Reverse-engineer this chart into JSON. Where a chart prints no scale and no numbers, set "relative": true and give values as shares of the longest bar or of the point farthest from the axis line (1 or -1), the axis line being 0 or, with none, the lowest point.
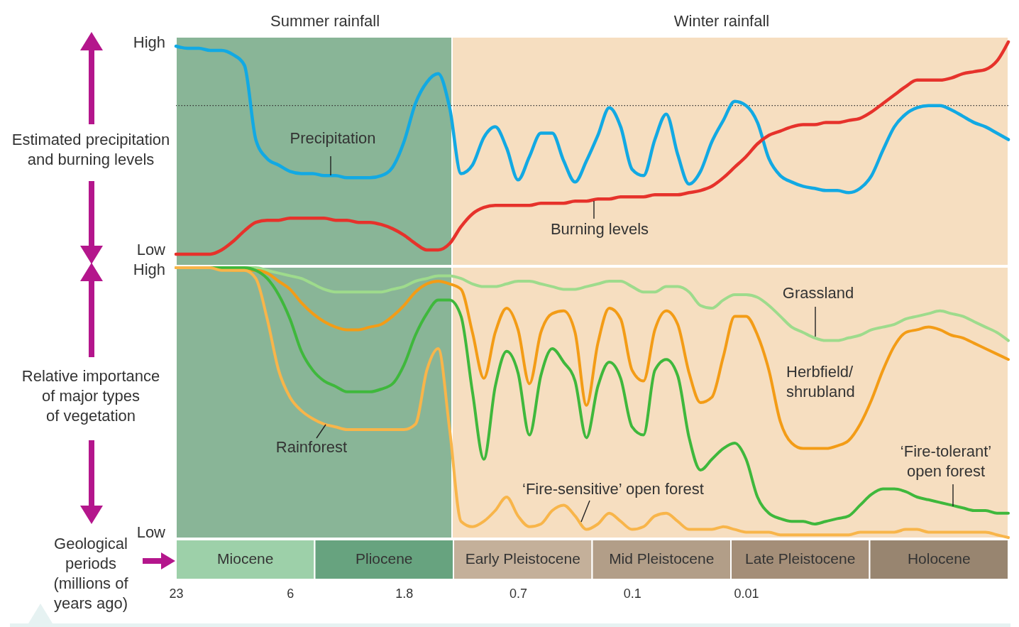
{
  "chart_data": [
    {
      "type": "line",
      "ylabel": "Estimated precipitation\nand burning levels",
      "relative": true,
      "tick_labels": false,
      "categories": [
        "23",
        null,
        null,
        null,
        null,
        null,
        null,
        null,
        null,
        null,
        "6",
        null,
        null,
        null,
        null,
        null,
        null,
        null,
        null,
        null,
        "1.8",
        null,
        null,
        null,
        null,
        null,
        null,
        null,
        null,
        null,
        "0.7",
        null,
        null,
        null,
        null,
        null,
        null,
        null,
        null,
        null,
        "0.1",
        null,
        null,
        null,
        null,
        null,
        null,
        null,
        null,
        null,
        "0.01",
        null,
        null,
        null,
        null,
        null,
        null,
        null,
        null,
        null,
        null,
        null,
        null,
        null,
        null,
        null,
        null,
        null,
        null,
        null,
        null,
        null,
        null,
        null
      ],
      "ref_lines": [
        {
          "axis": "y",
          "value": 0.7,
          "color": "#333333",
          "line_style": "dotted"
        }
      ],
      "annotations": [
        "Summer rainfall",
        "Winter rainfall",
        "High",
        "Low"
      ],
      "series": [
        {
          "name": "Precipitation",
          "color": "#12a9e3",
          "values": [
            0.98,
            0.97,
            0.97,
            0.96,
            0.96,
            0.94,
            0.89,
            0.54,
            0.45,
            0.42,
            0.39,
            0.38,
            0.38,
            0.37,
            0.37,
            0.36,
            0.36,
            0.36,
            0.37,
            0.41,
            0.53,
            0.71,
            0.81,
            0.85,
            0.69,
            0.38,
            0.42,
            0.55,
            0.6,
            0.5,
            0.35,
            0.46,
            0.57,
            0.57,
            0.44,
            0.34,
            0.44,
            0.56,
            0.69,
            0.6,
            0.4,
            0.37,
            0.54,
            0.66,
            0.47,
            0.33,
            0.39,
            0.53,
            0.63,
            0.72,
            0.7,
            0.62,
            0.45,
            0.37,
            0.34,
            0.32,
            0.31,
            0.3,
            0.3,
            0.29,
            0.31,
            0.37,
            0.49,
            0.6,
            0.66,
            0.69,
            0.7,
            0.7,
            0.68,
            0.65,
            0.62,
            0.6,
            0.57,
            0.54
          ]
        },
        {
          "name": "Burning levels",
          "color": "#e6322b",
          "values": [
            0,
            0,
            0,
            0,
            0.02,
            0.06,
            0.11,
            0.15,
            0.16,
            0.16,
            0.17,
            0.17,
            0.17,
            0.17,
            0.16,
            0.16,
            0.15,
            0.15,
            0.14,
            0.12,
            0.09,
            0.05,
            0.02,
            0.02,
            0.05,
            0.13,
            0.19,
            0.22,
            0.23,
            0.23,
            0.23,
            0.23,
            0.24,
            0.24,
            0.24,
            0.25,
            0.25,
            0.26,
            0.26,
            0.27,
            0.27,
            0.27,
            0.28,
            0.28,
            0.28,
            0.29,
            0.3,
            0.32,
            0.36,
            0.41,
            0.46,
            0.52,
            0.56,
            0.58,
            0.6,
            0.61,
            0.61,
            0.62,
            0.62,
            0.63,
            0.64,
            0.67,
            0.71,
            0.75,
            0.79,
            0.82,
            0.82,
            0.82,
            0.83,
            0.85,
            0.86,
            0.87,
            0.91,
            1.0
          ]
        }
      ]
    },
    {
      "type": "line",
      "ylabel": "Relative importance\nof major types\nof vegetation",
      "relative": true,
      "tick_labels": "x",
      "categories": [
        "23",
        null,
        null,
        null,
        null,
        null,
        null,
        null,
        null,
        null,
        "6",
        null,
        null,
        null,
        null,
        null,
        null,
        null,
        null,
        null,
        "1.8",
        null,
        null,
        null,
        null,
        null,
        null,
        null,
        null,
        null,
        "0.7",
        null,
        null,
        null,
        null,
        null,
        null,
        null,
        null,
        null,
        "0.1",
        null,
        null,
        null,
        null,
        null,
        null,
        null,
        null,
        null,
        "0.01",
        null,
        null,
        null,
        null,
        null,
        null,
        null,
        null,
        null,
        null,
        null,
        null,
        null,
        null,
        null,
        null,
        null,
        null,
        null,
        null,
        null,
        null,
        null
      ],
      "annotations": [
        "High",
        "Low",
        "‘Fire-sensitive’ open forest"
      ],
      "series": [
        {
          "name": "Grassland",
          "color": "#9edb8c",
          "values": [
            1,
            1,
            1,
            1,
            1,
            1,
            1,
            1,
            0.99,
            0.98,
            0.97,
            0.96,
            0.94,
            0.92,
            0.91,
            0.91,
            0.91,
            0.91,
            0.91,
            0.92,
            0.93,
            0.95,
            0.96,
            0.97,
            0.97,
            0.96,
            0.94,
            0.93,
            0.93,
            0.94,
            0.95,
            0.95,
            0.94,
            0.93,
            0.92,
            0.92,
            0.93,
            0.94,
            0.95,
            0.95,
            0.93,
            0.91,
            0.91,
            0.93,
            0.93,
            0.91,
            0.86,
            0.85,
            0.88,
            0.9,
            0.9,
            0.89,
            0.86,
            0.82,
            0.78,
            0.76,
            0.74,
            0.73,
            0.73,
            0.74,
            0.75,
            0.77,
            0.78,
            0.79,
            0.81,
            0.82,
            0.83,
            0.84,
            0.83,
            0.82,
            0.8,
            0.78,
            0.76,
            0.73
          ]
        },
        {
          "name": "Herbfield/\nshrubland",
          "color": "#f39c16",
          "values": [
            1,
            1,
            1,
            1,
            1,
            0.99,
            0.99,
            0.99,
            0.98,
            0.95,
            0.92,
            0.87,
            0.83,
            0.8,
            0.78,
            0.77,
            0.77,
            0.78,
            0.79,
            0.82,
            0.86,
            0.91,
            0.94,
            0.95,
            0.94,
            0.92,
            0.76,
            0.59,
            0.76,
            0.85,
            0.77,
            0.57,
            0.76,
            0.83,
            0.84,
            0.76,
            0.49,
            0.72,
            0.85,
            0.81,
            0.62,
            0.58,
            0.77,
            0.84,
            0.79,
            0.61,
            0.5,
            0.52,
            0.67,
            0.82,
            0.82,
            0.75,
            0.62,
            0.43,
            0.35,
            0.33,
            0.33,
            0.33,
            0.34,
            0.36,
            0.42,
            0.51,
            0.62,
            0.71,
            0.76,
            0.77,
            0.78,
            0.77,
            0.75,
            0.74,
            0.72,
            0.7,
            0.68,
            0.66
          ]
        },
        {
          "name": "‘Fire-tolerant’\nopen forest",
          "color": "#3fb83c",
          "values": [
            null,
            null,
            1,
            1,
            1,
            1,
            1,
            0.99,
            0.96,
            0.9,
            0.81,
            0.69,
            0.62,
            0.58,
            0.56,
            0.54,
            0.54,
            0.54,
            0.55,
            0.57,
            0.64,
            0.75,
            0.83,
            0.88,
            0.88,
            0.82,
            0.54,
            0.29,
            0.56,
            0.69,
            0.61,
            0.38,
            0.6,
            0.7,
            0.65,
            0.58,
            0.37,
            0.56,
            0.65,
            0.59,
            0.41,
            0.38,
            0.62,
            0.66,
            0.6,
            0.37,
            0.25,
            0.29,
            0.33,
            0.35,
            0.29,
            0.15,
            0.09,
            0.07,
            0.06,
            0.06,
            0.05,
            0.06,
            0.07,
            0.08,
            0.12,
            0.16,
            0.18,
            0.18,
            0.17,
            0.15,
            0.14,
            0.13,
            0.12,
            0.11,
            0.1,
            0.1,
            0.09,
            0.09
          ]
        },
        {
          "name": "Rainforest",
          "color": "#f8b54a",
          "values": [
            1,
            1,
            1,
            1,
            0.99,
            0.99,
            0.99,
            0.96,
            0.81,
            0.62,
            0.52,
            0.47,
            0.44,
            0.42,
            0.41,
            0.4,
            0.4,
            0.4,
            0.4,
            0.4,
            0.4,
            0.42,
            0.62,
            0.7,
            0.4,
            0.06,
            0.04,
            0.06,
            0.1,
            0.15,
            0.08,
            0.04,
            0.05,
            0.1,
            0.12,
            0.08,
            0.03,
            0.05,
            0.09,
            0.06,
            0.03,
            0.04,
            0.08,
            0.09,
            0.06,
            0.03,
            0.03,
            0.03,
            0.04,
            0.03,
            0.02,
            0.02,
            0.02,
            0.01,
            0.01,
            0.01,
            0.01,
            0.01,
            0.01,
            0.01,
            0.02,
            0.02,
            0.02,
            0.02,
            0.03,
            0.03,
            0.02,
            0.02,
            0.02,
            0.02,
            0.02,
            0.02,
            0.01,
            0
          ]
        }
      ]
    },
    {
      "type": "other",
      "ylabel": "Geological\nperiods\n(millions of\nyears ago)",
      "categories": [
        "Miocene",
        "Pliocene",
        "Early Pleistocene",
        "Mid Pleistocene",
        "Late Pleistocene",
        "Holocene"
      ],
      "colors": [
        "#9dd0a9",
        "#67a37f",
        "#c4b09a",
        "#b29e88",
        "#a48e78",
        "#988570"
      ]
    }
  ]
}
